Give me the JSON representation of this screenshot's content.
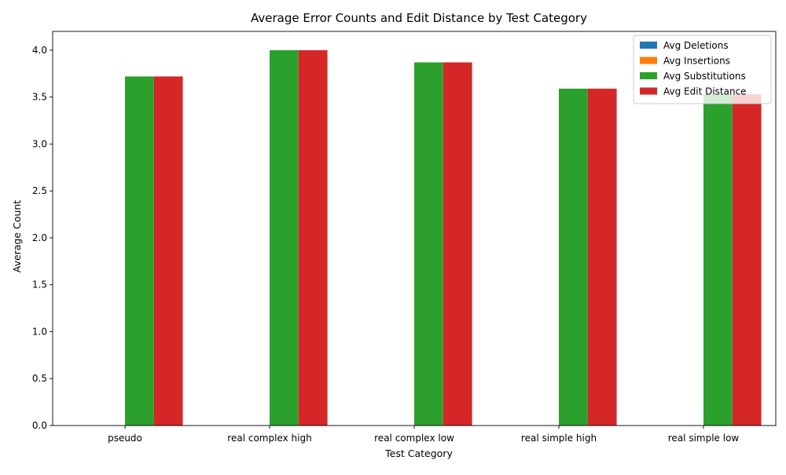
{
  "chart_data": {
    "type": "bar",
    "title": "Average Error Counts and Edit Distance by Test Category",
    "xlabel": "Test Category",
    "ylabel": "Average Count",
    "categories": [
      "pseudo",
      "real complex high",
      "real complex low",
      "real simple high",
      "real simple low"
    ],
    "ylim": [
      0,
      4.2
    ],
    "yticks": [
      "0.0",
      "0.5",
      "1.0",
      "1.5",
      "2.0",
      "2.5",
      "3.0",
      "3.5",
      "4.0"
    ],
    "grid": false,
    "legend_position": "top-right",
    "series": [
      {
        "name": "Avg Deletions",
        "color": "#1f77b4",
        "values": [
          0,
          0,
          0,
          0,
          0
        ]
      },
      {
        "name": "Avg Insertions",
        "color": "#ff7f0e",
        "values": [
          0,
          0,
          0,
          0,
          0
        ]
      },
      {
        "name": "Avg Substitutions",
        "color": "#2ca02c",
        "values": [
          3.72,
          4.0,
          3.87,
          3.59,
          3.53
        ]
      },
      {
        "name": "Avg Edit Distance",
        "color": "#d62728",
        "values": [
          3.72,
          4.0,
          3.87,
          3.59,
          3.53
        ]
      }
    ]
  }
}
